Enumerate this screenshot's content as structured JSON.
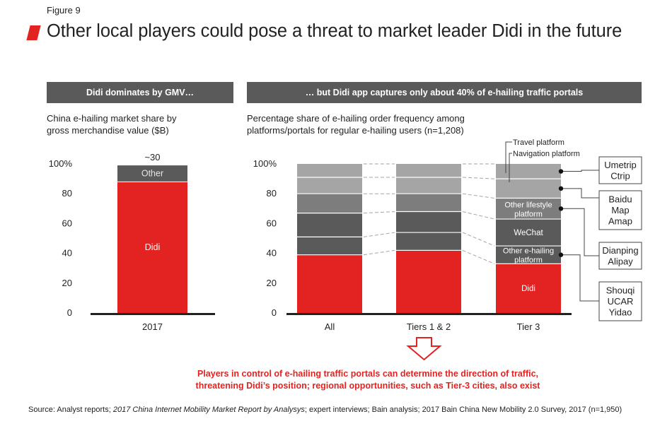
{
  "figure_label": "Figure 9",
  "title": "Other local players could pose a threat to market leader Didi in the future",
  "colors": {
    "red": "#e32321",
    "dark_gray": "#5a5a5a",
    "mid_gray": "#7d7d7d",
    "light_gray": "#a5a5a5"
  },
  "left_panel": {
    "header": "Didi dominates by GMV…",
    "subtitle_line1": "China e-hailing market share by",
    "subtitle_line2": "gross merchandise value ($B)"
  },
  "right_panel": {
    "header": "… but Didi app captures only about 40% of e-hailing traffic portals",
    "subtitle_line1": "Percentage share of e-hailing order frequency among",
    "subtitle_line2": "platforms/portals for regular e-hailing users (n=1,208)"
  },
  "chart_data": [
    {
      "type": "bar",
      "stacked": true,
      "categories": [
        "2017"
      ],
      "series": [
        {
          "name": "Didi",
          "values": [
            88
          ]
        },
        {
          "name": "Other",
          "values": [
            11
          ]
        }
      ],
      "bar_total_label": "~30",
      "yticks": [
        "0",
        "20",
        "40",
        "60",
        "80",
        "100%"
      ],
      "ylim": [
        0,
        100
      ]
    },
    {
      "type": "bar",
      "stacked": true,
      "categories": [
        "All",
        "Tiers 1 & 2",
        "Tier 3"
      ],
      "series": [
        {
          "name": "Didi",
          "values": [
            39,
            42,
            33
          ]
        },
        {
          "name": "Other e-hailing platform",
          "values": [
            12,
            12,
            12
          ]
        },
        {
          "name": "WeChat",
          "values": [
            16,
            14,
            18
          ]
        },
        {
          "name": "Other lifestyle platform",
          "values": [
            13,
            12,
            14
          ]
        },
        {
          "name": "Navigation platform",
          "values": [
            11,
            11,
            13
          ]
        },
        {
          "name": "Travel platform",
          "values": [
            9,
            9,
            10
          ]
        }
      ],
      "segment_labels": {
        "didi": "Didi",
        "other_ehailing_line1": "Other e-hailing",
        "other_ehailing_line2": "platform",
        "wechat": "WeChat",
        "other_lifestyle_line1": "Other lifestyle",
        "other_lifestyle_line2": "platform",
        "navigation": "Navigation platform",
        "travel": "Travel platform"
      },
      "callouts": [
        {
          "lines": [
            "Umetrip",
            "Ctrip"
          ]
        },
        {
          "lines": [
            "Baidu",
            "Map",
            "Amap"
          ]
        },
        {
          "lines": [
            "Dianping",
            "Alipay"
          ]
        },
        {
          "lines": [
            "Shouqi",
            "UCAR",
            "Yidao"
          ]
        }
      ],
      "yticks": [
        "0",
        "20",
        "40",
        "60",
        "80",
        "100%"
      ],
      "ylim": [
        0,
        100
      ]
    }
  ],
  "callout_text_line1": "Players in control of e-hailing traffic portals can determine the direction of traffic,",
  "callout_text_line2": "threatening Didi’s position; regional opportunities, such as Tier-3 cities, also exist",
  "source_prefix": "Source: Analyst reports; ",
  "source_italic": "2017 China Internet Mobility Market Report by Analysys",
  "source_suffix": "; expert interviews; Bain analysis; 2017 Bain China New Mobility 2.0 Survey, 2017 (n=1,950)"
}
